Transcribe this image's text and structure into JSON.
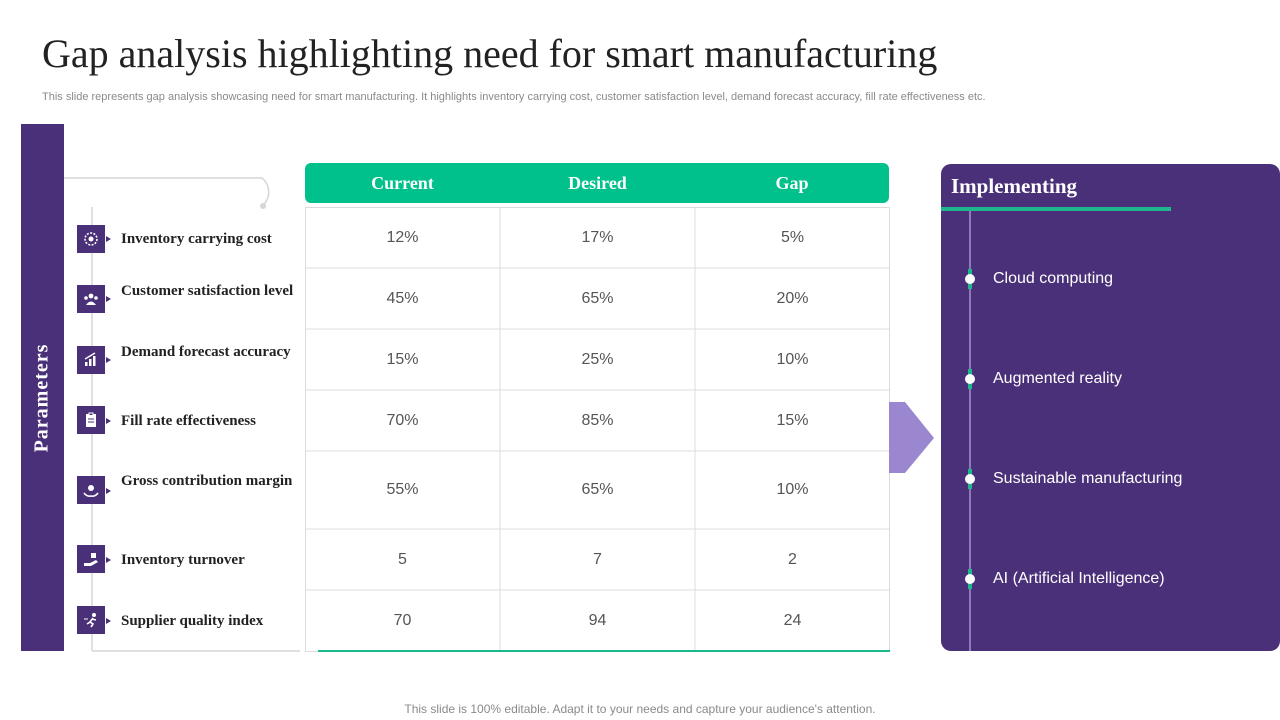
{
  "title": "Gap analysis highlighting need for smart manufacturing",
  "subtitle": "This slide represents gap analysis showcasing need for smart manufacturing. It highlights inventory carrying cost, customer satisfaction level, demand forecast accuracy, fill rate effectiveness etc.",
  "parameters_label": "Parameters",
  "table": {
    "headers": [
      "Current",
      "Desired",
      "Gap"
    ],
    "rows": [
      {
        "label": "Inventory carrying cost",
        "icon": "gear-coin-icon",
        "current": "12%",
        "desired": "17%",
        "gap": "5%"
      },
      {
        "label": "Customer satisfaction level",
        "icon": "customers-icon",
        "current": "45%",
        "desired": "65%",
        "gap": "20%"
      },
      {
        "label": "Demand forecast accuracy",
        "icon": "bar-growth-icon",
        "current": "15%",
        "desired": "25%",
        "gap": "10%"
      },
      {
        "label": "Fill rate effectiveness",
        "icon": "clipboard-icon",
        "current": "70%",
        "desired": "85%",
        "gap": "15%"
      },
      {
        "label": "Gross contribution margin",
        "icon": "hand-coin-icon",
        "current": "55%",
        "desired": "65%",
        "gap": "10%"
      },
      {
        "label": "Inventory turnover",
        "icon": "hand-box-icon",
        "current": "5",
        "desired": "7",
        "gap": "2"
      },
      {
        "label": "Supplier quality index",
        "icon": "runner-icon",
        "current": "70",
        "desired": "94",
        "gap": "24"
      }
    ]
  },
  "implementing": {
    "title": "Implementing",
    "items": [
      "Cloud computing",
      "Augmented reality",
      "Sustainable manufacturing",
      "AI (Artificial Intelligence)"
    ]
  },
  "footer": "This slide is 100% editable. Adapt it to your needs and capture your audience's attention.",
  "colors": {
    "purple": "#4a3078",
    "teal": "#00c08b",
    "arrow_purple": "#9b87cf"
  }
}
